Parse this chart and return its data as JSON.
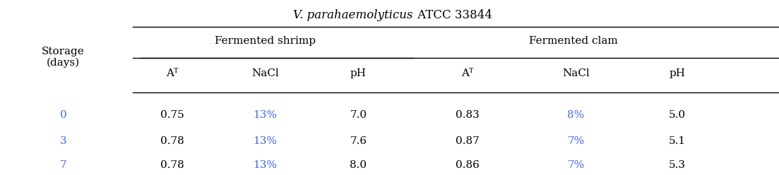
{
  "title": "V. parahaemolyticus ATCC 33844",
  "title_italic_part": "V. parahaemolyticus",
  "title_normal_part": " ATCC 33844",
  "col_header_row1": [
    "",
    "Fermented shrimp",
    "",
    "",
    "Fermented clam",
    "",
    ""
  ],
  "col_header_row2": [
    "Storage\n(days)",
    "Aᵀ",
    "NaCl",
    "pH",
    "Aᵀ",
    "NaCl",
    "pH"
  ],
  "rows": [
    [
      "0",
      "0.75",
      "13%",
      "7.0",
      "0.83",
      "8%",
      "5.0"
    ],
    [
      "3",
      "0.78",
      "13%",
      "7.6",
      "0.87",
      "7%",
      "5.1"
    ],
    [
      "7",
      "0.78",
      "13%",
      "8.0",
      "0.86",
      "7%",
      "5.3"
    ]
  ],
  "col_colors": {
    "storage": "#4169E1",
    "aw_shrimp": "#000000",
    "nacl_shrimp": "#4169E1",
    "ph_shrimp": "#000000",
    "aw_clam": "#000000",
    "nacl_clam": "#4169E1",
    "ph_clam": "#000000"
  },
  "background_color": "#ffffff",
  "line_color": "#000000",
  "font_size": 11,
  "title_font_size": 12
}
